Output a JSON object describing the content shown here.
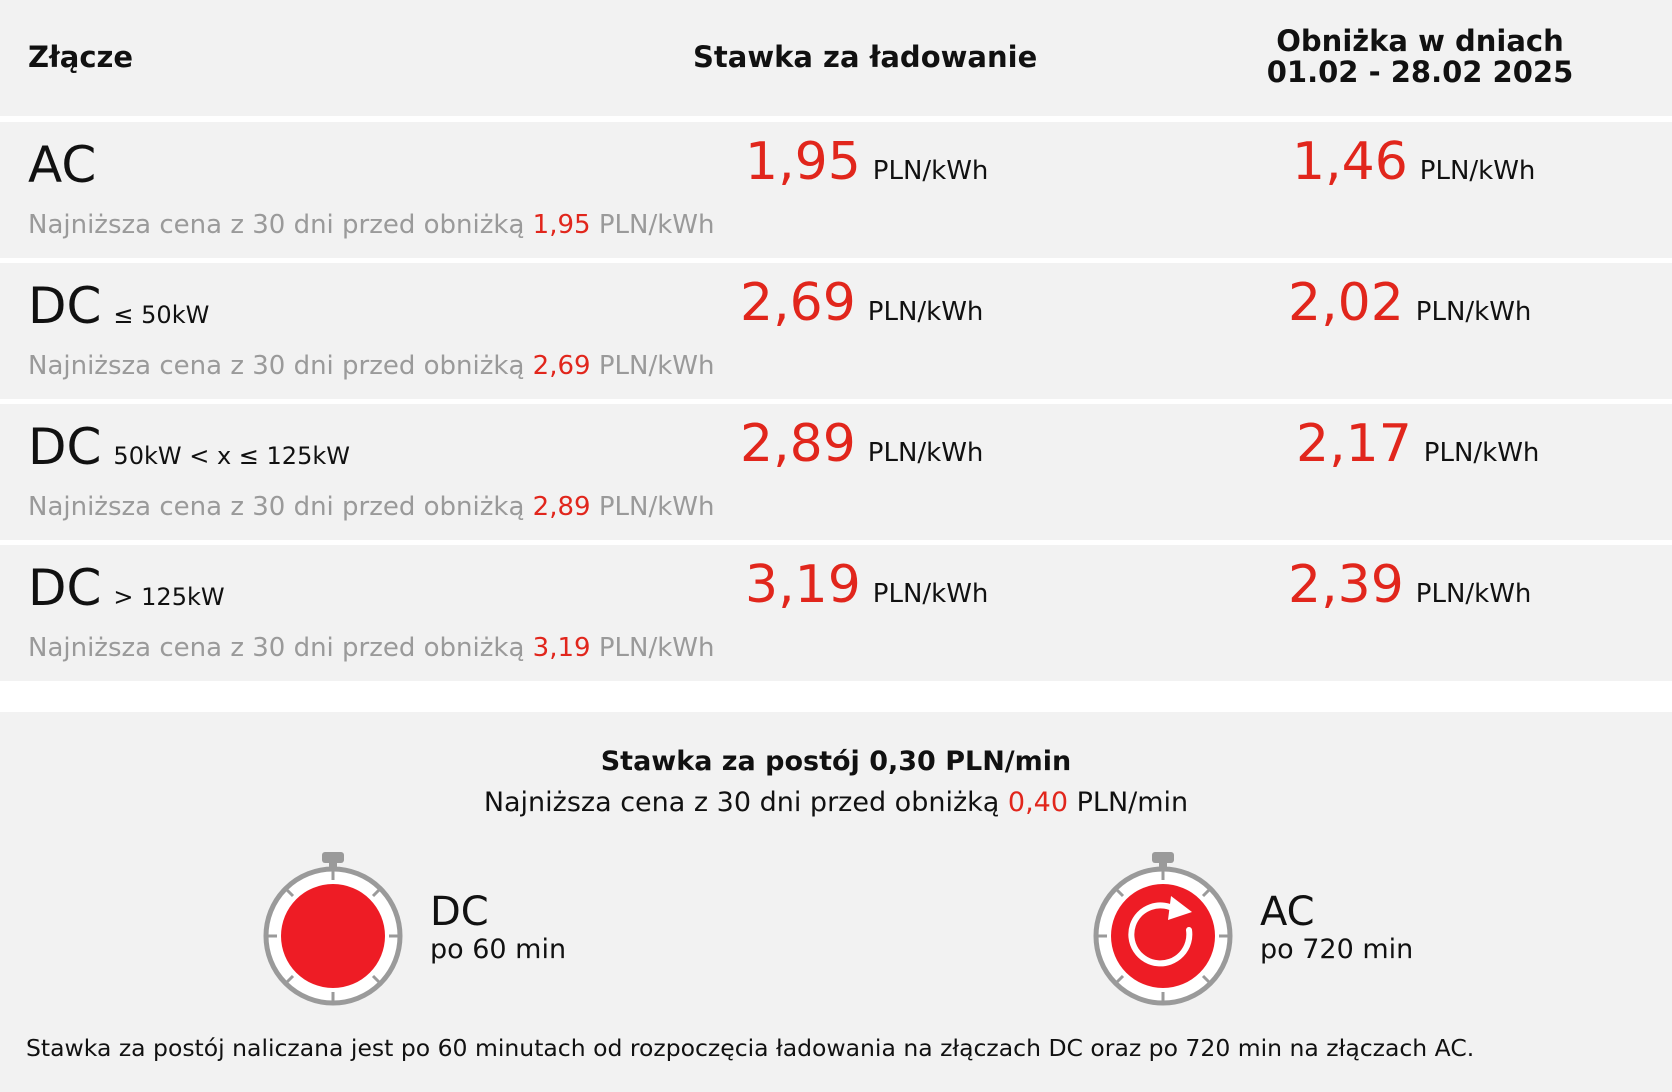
{
  "header": {
    "col_connector": "Złącze",
    "col_rate": "Stawka za ładowanie",
    "col_discount_line1": "Obniżka w dniach",
    "col_discount_line2": "01.02 - 28.02 2025"
  },
  "rows": [
    {
      "connector": "AC",
      "range": "",
      "rate": "1,95",
      "rate_unit": "PLN/kWh",
      "discount": "1,46",
      "discount_unit": "PLN/kWh",
      "note_prefix": "Najniższa cena z 30 dni przed obniżką",
      "note_value": "1,95",
      "note_unit": "PLN/kWh"
    },
    {
      "connector": "DC",
      "range": "≤ 50kW",
      "rate": "2,69",
      "rate_unit": "PLN/kWh",
      "discount": "2,02",
      "discount_unit": "PLN/kWh",
      "note_prefix": "Najniższa cena z 30 dni przed obniżką",
      "note_value": "2,69",
      "note_unit": "PLN/kWh"
    },
    {
      "connector": "DC",
      "range": "50kW < x ≤ 125kW",
      "rate": "2,89",
      "rate_unit": "PLN/kWh",
      "discount": "2,17",
      "discount_unit": "PLN/kWh",
      "note_prefix": "Najniższa cena z 30 dni przed obniżką",
      "note_value": "2,89",
      "note_unit": "PLN/kWh"
    },
    {
      "connector": "DC",
      "range": "> 125kW",
      "rate": "3,19",
      "rate_unit": "PLN/kWh",
      "discount": "2,39",
      "discount_unit": "PLN/kWh",
      "note_prefix": "Najniższa cena z 30 dni przed obniżką",
      "note_value": "3,19",
      "note_unit": "PLN/kWh"
    }
  ],
  "idle": {
    "title": "Stawka za postój 0,30 PLN/min",
    "note_prefix": "Najniższa cena z 30 dni przed obniżką",
    "note_value": "0,40",
    "note_unit": "PLN/min"
  },
  "timers": [
    {
      "label": "DC",
      "sub": "po 60 min",
      "icon": "stopwatch-icon"
    },
    {
      "label": "AC",
      "sub": "po 720 min",
      "icon": "stopwatch-refresh-icon"
    }
  ],
  "footnote": "Stawka za postój naliczana jest po 60 minutach od rozpoczęcia ładowania na złączach DC oraz po 720 min na złączach AC.",
  "colors": {
    "accent": "#e1261c",
    "background": "#f2f2f2",
    "muted_text": "#9a9a9a"
  }
}
